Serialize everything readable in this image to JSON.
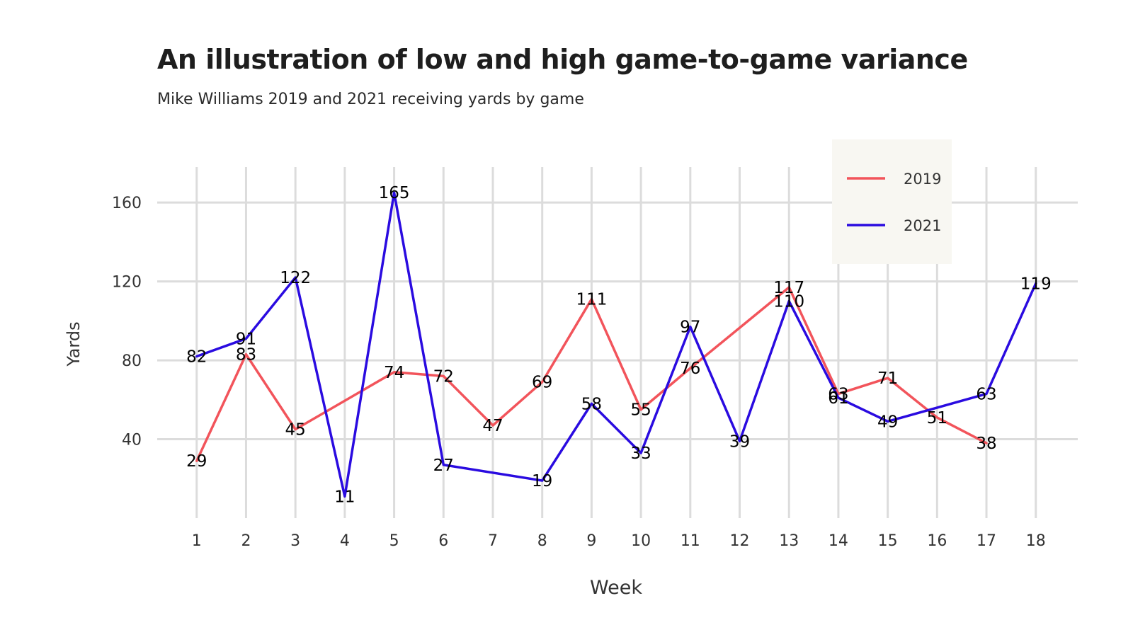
{
  "chart_data": {
    "type": "line",
    "title": "An illustration of low and high game-to-game variance",
    "subtitle": "Mike Williams 2019 and 2021 receiving yards by game",
    "xlabel": "Week",
    "ylabel": "Yards",
    "x_ticks": [
      1,
      2,
      3,
      4,
      5,
      6,
      7,
      8,
      9,
      10,
      11,
      12,
      13,
      14,
      15,
      16,
      17,
      18
    ],
    "y_ticks": [
      40,
      80,
      120,
      160
    ],
    "xlim": [
      0.2,
      18.85
    ],
    "ylim": [
      0,
      178
    ],
    "grid": true,
    "legend_position": "top-right",
    "series": [
      {
        "name": "2019",
        "color": "#F2545B",
        "points": [
          [
            1,
            29
          ],
          [
            2,
            83
          ],
          [
            3,
            45
          ],
          [
            5,
            74
          ],
          [
            6,
            72
          ],
          [
            7,
            47
          ],
          [
            8,
            69
          ],
          [
            9,
            111
          ],
          [
            10,
            55
          ],
          [
            11,
            76
          ],
          [
            13,
            117
          ],
          [
            14,
            63
          ],
          [
            15,
            71
          ],
          [
            16,
            51
          ],
          [
            17,
            38
          ]
        ]
      },
      {
        "name": "2021",
        "color": "#2A0BE0",
        "points": [
          [
            1,
            82
          ],
          [
            2,
            91
          ],
          [
            3,
            122
          ],
          [
            4,
            11
          ],
          [
            5,
            165
          ],
          [
            6,
            27
          ],
          [
            8,
            19
          ],
          [
            9,
            58
          ],
          [
            10,
            33
          ],
          [
            11,
            97
          ],
          [
            12,
            39
          ],
          [
            13,
            110
          ],
          [
            14,
            61
          ],
          [
            15,
            49
          ],
          [
            17,
            63
          ],
          [
            18,
            119
          ]
        ]
      }
    ]
  }
}
